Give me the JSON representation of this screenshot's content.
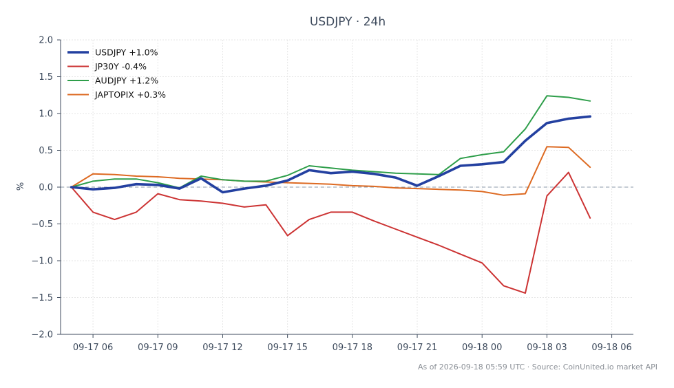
{
  "chart_data": {
    "type": "line",
    "title": "USDJPY · 24h",
    "ylabel": "%",
    "xlabel": "",
    "ylim": [
      -2.0,
      2.0
    ],
    "yticks": [
      "2.0",
      "1.5",
      "1.0",
      "0.5",
      "0.0",
      "−0.5",
      "−1.0",
      "−1.5",
      "−2.0"
    ],
    "ytick_values": [
      2.0,
      1.5,
      1.0,
      0.5,
      0.0,
      -0.5,
      -1.0,
      -1.5,
      -2.0
    ],
    "xlim": [
      "2026-09-17 04:30",
      "2026-09-18 07:00"
    ],
    "xticks": [
      "09-17 06",
      "09-17 09",
      "09-17 12",
      "09-17 15",
      "09-17 18",
      "09-17 21",
      "09-18 00",
      "09-18 03",
      "09-18 06"
    ],
    "xtick_values": [
      "2026-09-17 06:00",
      "2026-09-17 09:00",
      "2026-09-17 12:00",
      "2026-09-17 15:00",
      "2026-09-17 18:00",
      "2026-09-17 21:00",
      "2026-09-18 00:00",
      "2026-09-18 03:00",
      "2026-09-18 06:00"
    ],
    "grid": true,
    "legend_position": "top-left",
    "reference_line": 0.0,
    "x": [
      "2026-09-17 05:00",
      "2026-09-17 06:00",
      "2026-09-17 07:00",
      "2026-09-17 08:00",
      "2026-09-17 09:00",
      "2026-09-17 10:00",
      "2026-09-17 11:00",
      "2026-09-17 12:00",
      "2026-09-17 13:00",
      "2026-09-17 14:00",
      "2026-09-17 15:00",
      "2026-09-17 16:00",
      "2026-09-17 17:00",
      "2026-09-17 18:00",
      "2026-09-17 19:00",
      "2026-09-17 20:00",
      "2026-09-17 21:00",
      "2026-09-17 22:00",
      "2026-09-17 23:00",
      "2026-09-18 00:00",
      "2026-09-18 01:00",
      "2026-09-18 02:00",
      "2026-09-18 03:00",
      "2026-09-18 04:00",
      "2026-09-18 05:00"
    ],
    "series": [
      {
        "name": "USDJPY +1.0%",
        "color": "#2340a0",
        "values": [
          0.0,
          -0.03,
          -0.01,
          0.04,
          0.03,
          -0.02,
          0.12,
          -0.07,
          -0.02,
          0.02,
          0.09,
          0.23,
          0.19,
          0.21,
          0.18,
          0.13,
          0.02,
          0.15,
          0.29,
          0.31,
          0.34,
          0.63,
          0.87,
          0.93,
          0.96
        ]
      },
      {
        "name": "JP30Y -0.4%",
        "color": "#cc3333",
        "values": [
          0.0,
          -0.34,
          -0.44,
          -0.34,
          -0.09,
          -0.17,
          -0.19,
          -0.22,
          -0.27,
          -0.24,
          -0.66,
          -0.44,
          -0.34,
          -0.34,
          -0.46,
          -0.57,
          -0.68,
          -0.79,
          -0.91,
          -1.03,
          -1.34,
          -1.44,
          -0.12,
          0.2,
          -0.42
        ]
      },
      {
        "name": "AUDJPY +1.2%",
        "color": "#2e9e4a",
        "values": [
          0.0,
          0.08,
          0.11,
          0.11,
          0.06,
          -0.01,
          0.15,
          0.1,
          0.08,
          0.08,
          0.16,
          0.29,
          0.26,
          0.23,
          0.21,
          0.19,
          0.18,
          0.17,
          0.39,
          0.44,
          0.48,
          0.79,
          1.24,
          1.22,
          1.17
        ]
      },
      {
        "name": "JAPTOPIX +0.3%",
        "color": "#dd6a22",
        "values": [
          0.0,
          0.18,
          0.17,
          0.15,
          0.14,
          0.12,
          0.11,
          0.1,
          0.08,
          0.07,
          0.06,
          0.05,
          0.04,
          0.02,
          0.01,
          -0.01,
          -0.02,
          -0.03,
          -0.04,
          -0.06,
          -0.11,
          -0.09,
          0.55,
          0.54,
          0.27
        ]
      }
    ]
  },
  "footer": "As of 2026-09-18 05:59 UTC · Source: CoinUnited.io market API"
}
